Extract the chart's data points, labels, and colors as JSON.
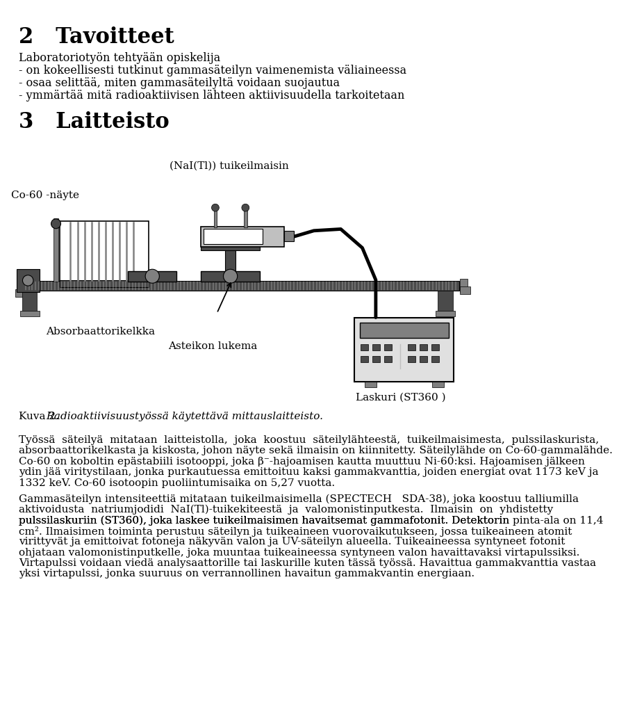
{
  "title_section2": "2   Tavoitteet",
  "body_section2_line0": "Laboratoriotyön tehtyään opiskelija",
  "body_section2_line1": "- on kokeellisesti tutkinut gammasäteilyn vaimenemista väliaineessa",
  "body_section2_line2": "- osaa selittää, miten gammasäteilyltä voidaan suojautua",
  "body_section2_line3": "- ymmärtää mitä radioaktiivisen lähteen aktiivisuudella tarkoitetaan",
  "title_section3": "3   Laitteisto",
  "label_co60": "Co-60 -näyte",
  "label_nai": "(NaI(Tl)) tuikeilmaisin",
  "label_absorb": "Absorbaattorikelkka",
  "label_asteikon": "Asteikon lukema",
  "label_laskuri": "Laskuri (ST360 )",
  "caption_normal": "Kuva 2. ",
  "caption_italic": "Radioaktiivisuustyössä käytettävä mittauslaitteisto.",
  "para1_lines": [
    "Työssä  säteilyä  mitataan  laitteistolla,  joka  koostuu  säteilylähteestä,  tuikeilmaisimesta,  pulssilaskurista,",
    "absorbaattorikelkasta ja kiskosta, johon näyte sekä ilmaisin on kiinnitetty. Säteilylähde on Co-60-gammalähde.",
    "Co-60 on koboltin epästabiili isotooppi, joka β⁻-hajoamisen kautta muuttuu Ni-60:ksi. Hajoamisen jälkeen",
    "ydin jää viritystilaan, jonka purkautuessa emittoituu kaksi gammakvanttia, joiden energiat ovat 1173 keV ja",
    "1332 keV. Co-60 isotoopin puoliintumisaika on 5,27 vuotta."
  ],
  "para2_lines": [
    "Gammasäteilyn intensiteettiä mitataan tuikeilmaisimella (SPECTECH   SDA-38), joka koostuu talliumilla",
    "aktivoidusta  natriumjodidi  NaI(Tl)-tuikekiteestä  ja  valomonistinputkesta.  Ilmaisin  on  yhdistetty",
    "pulssilaskuriin (ST360), joka laskee tuikeilmaisimen havaitsemat gammafotonit. Detektorin ",
    "pinta-ala",
    " on 11,4",
    "cm². Ilmaisimen toiminta perustuu säteilyn ja tuikeaineen vuorovaikutukseen, jossa tuikeaineen atomit",
    "virittyvät ja emittoivat fotoneja näkyvän valon ja UV-säteilyn alueella. Tuikeaineessa syntyneet fotonit",
    "ohjataan valomonistinputkelle, joka muuntaa tuikeaineessa syntyneen valon havaittavaksi virtapulssiksi.",
    "Virtapulssi voidaan viedä analysaattorille tai laskurille kuten tässä työssä. Havaittua gammakvanttia vastaa",
    "yksi virtapulssi, jonka suuruus on verrannollinen havaitun gammakvantin energiaan."
  ],
  "bg_color": "#ffffff",
  "dark_gray": "#4a4a4a",
  "med_gray": "#808080",
  "light_gray": "#c0c0c0",
  "very_light_gray": "#e0e0e0",
  "white": "#ffffff",
  "black": "#000000"
}
